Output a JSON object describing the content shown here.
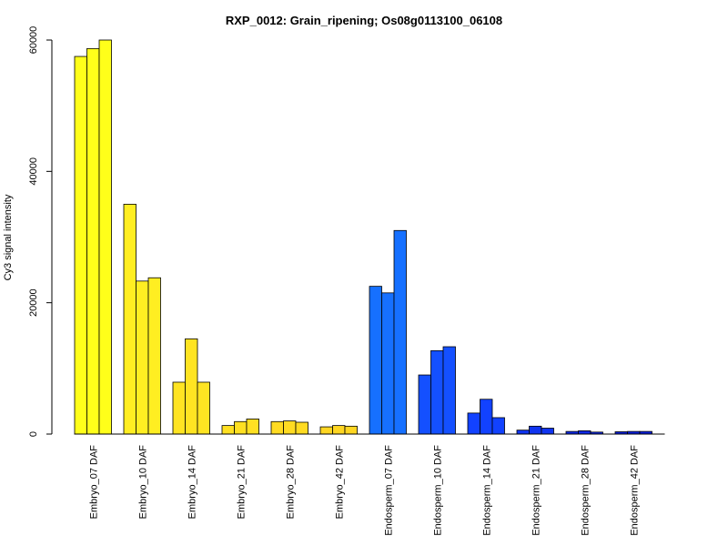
{
  "chart_data": {
    "type": "bar",
    "title": "RXP_0012: Grain_ripening; Os08g0113100_06108",
    "xlabel": "",
    "ylabel": "Cy3 signal intensity",
    "ylim": [
      0,
      60000
    ],
    "yticks": [
      0,
      20000,
      40000,
      60000
    ],
    "grid": false,
    "legend": "none",
    "categories": [
      "Embryo_07 DAF",
      "Embryo_10 DAF",
      "Embryo_14 DAF",
      "Embryo_21 DAF",
      "Embryo_28 DAF",
      "Embryo_42 DAF",
      "Endosperm_07 DAF",
      "Endosperm_10 DAF",
      "Endosperm_14 DAF",
      "Endosperm_21 DAF",
      "Endosperm_28 DAF",
      "Endosperm_42 DAF"
    ],
    "colors": [
      "#ffff1a",
      "#ffee22",
      "#ffe422",
      "#ffe022",
      "#ffdb22",
      "#ffd622",
      "#1670ff",
      "#1450ff",
      "#1242ff",
      "#1034f0",
      "#0e28e6",
      "#0c20dd"
    ],
    "replicates": [
      [
        57500,
        58700,
        60000
      ],
      [
        35000,
        23300,
        23800
      ],
      [
        7900,
        14500,
        7900
      ],
      [
        1300,
        1900,
        2300
      ],
      [
        1900,
        2000,
        1800
      ],
      [
        1100,
        1300,
        1200
      ],
      [
        22500,
        21500,
        31000
      ],
      [
        9000,
        12700,
        13300
      ],
      [
        3200,
        5300,
        2500
      ],
      [
        600,
        1200,
        900
      ],
      [
        400,
        500,
        300
      ],
      [
        350,
        400,
        400
      ]
    ]
  }
}
